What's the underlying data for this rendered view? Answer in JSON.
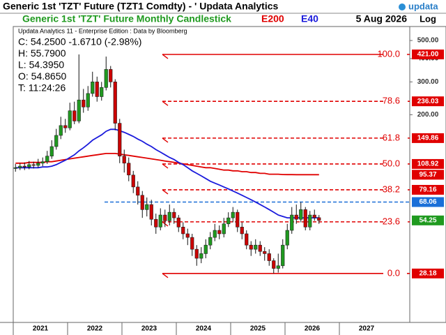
{
  "header": {
    "title": "Generic 1st 'TZT' Future (TZT1 Comdty) - ' Updata Analytics",
    "logo": "updata",
    "scale_mode": "Log"
  },
  "info": {
    "source": "Updata Analytics 11 - Enterprise Edition : Data by Bloomberg",
    "lines": [
      "C: 54.2500 -1.6710 (-2.98%)",
      "H: 55.7900",
      "L: 54.3950",
      "O: 54.8650",
      "T: 11:24:26"
    ]
  },
  "chart_data": {
    "type": "candlestick",
    "title": "Generic 1st 'TZT' Future Monthly Candlestick",
    "date": "5 Aug 2026",
    "log_scale": true,
    "ylim": [
      15.4,
      584
    ],
    "yticks": [
      {
        "value": 500,
        "label": "500.00"
      },
      {
        "value": 400,
        "label": "400.00"
      },
      {
        "value": 300,
        "label": "300.00"
      },
      {
        "value": 200,
        "label": "200.00"
      }
    ],
    "x_labels": [
      "2021",
      "2022",
      "2023",
      "2024",
      "2025",
      "2026",
      "2027"
    ],
    "up_color": "#1f9a1f",
    "down_color": "#cc0000",
    "open": [
      103,
      104,
      106,
      105,
      108,
      107,
      110,
      112,
      120,
      135,
      155,
      175,
      170,
      210,
      185,
      240,
      220,
      260,
      300,
      250,
      280,
      350,
      300,
      180,
      120,
      110,
      95,
      82,
      74,
      62,
      66,
      55,
      50,
      58,
      54,
      60,
      56,
      50,
      46,
      44,
      38,
      34,
      36,
      40,
      44,
      48,
      46,
      52,
      56,
      60,
      50,
      46,
      40,
      38,
      40,
      37,
      36,
      33,
      30,
      31,
      40,
      48,
      58,
      55,
      62,
      50,
      58,
      56.12
    ],
    "high": [
      109,
      110,
      111,
      113,
      112,
      116,
      118,
      128,
      146,
      168,
      195,
      190,
      232,
      235,
      421,
      275,
      285,
      340,
      320,
      300,
      410,
      365,
      310,
      190,
      130,
      118,
      100,
      88,
      78,
      72,
      70,
      59,
      63,
      62,
      66,
      63,
      58,
      53,
      49,
      46,
      40,
      39,
      43,
      47,
      52,
      51,
      56,
      60,
      64,
      62,
      53,
      48,
      42,
      43,
      42,
      39,
      38,
      34,
      36,
      43,
      52,
      64,
      66,
      68,
      64,
      61,
      62,
      58
    ],
    "low": [
      99,
      101,
      101,
      102,
      103,
      104,
      106,
      109,
      116,
      130,
      148,
      160,
      165,
      178,
      180,
      205,
      210,
      250,
      235,
      238,
      270,
      280,
      165,
      110,
      98,
      88,
      76,
      66,
      56,
      57,
      51,
      46,
      48,
      50,
      51,
      52,
      47,
      43,
      40,
      35,
      31,
      32,
      34,
      38,
      42,
      43,
      44,
      50,
      53,
      47,
      43,
      38,
      35,
      36,
      35,
      33,
      31,
      28.18,
      28.5,
      30,
      38,
      46,
      52,
      53,
      48,
      48,
      54,
      52
    ],
    "close": [
      104,
      106,
      105,
      108,
      107,
      110,
      112,
      120,
      135,
      155,
      175,
      170,
      210,
      185,
      240,
      220,
      260,
      300,
      250,
      280,
      350,
      300,
      180,
      120,
      110,
      95,
      82,
      74,
      62,
      66,
      55,
      50,
      58,
      54,
      60,
      56,
      50,
      46,
      44,
      38,
      34,
      36,
      40,
      44,
      48,
      46,
      52,
      56,
      60,
      50,
      46,
      40,
      38,
      40,
      37,
      36,
      33,
      30,
      31,
      40,
      48,
      58,
      55,
      62,
      50,
      58,
      56.12,
      54.25
    ],
    "close_label": "54.25",
    "lines": [
      {
        "name": "E200",
        "color": "#e00000",
        "last_label": "95.37",
        "values": [
          110,
          110,
          110,
          111,
          111,
          111,
          111,
          112,
          112,
          113,
          114,
          115,
          116,
          117,
          118,
          119,
          120,
          121,
          122,
          123,
          124,
          124,
          124,
          123,
          122,
          121,
          120,
          119,
          118,
          117,
          116,
          115,
          114,
          113,
          112,
          111,
          110,
          109,
          108,
          107,
          106,
          105,
          104,
          104,
          103,
          102,
          101,
          101,
          100,
          100,
          99,
          99,
          98,
          98,
          97,
          97,
          96,
          96,
          96,
          95.6,
          95.5,
          95.5,
          95.4,
          95.4,
          95.4,
          95.4,
          95.4,
          95.37
        ]
      },
      {
        "name": "E40",
        "color": "#1a1adc",
        "values": [
          104,
          104,
          104,
          104,
          104,
          104,
          105,
          105,
          106,
          108,
          111,
          114,
          118,
          122,
          128,
          133,
          139,
          146,
          151,
          156,
          163,
          167,
          167,
          164,
          161,
          157,
          153,
          148,
          144,
          139,
          135,
          130,
          126,
          122,
          118,
          115,
          111,
          108,
          104,
          100,
          97,
          94,
          91,
          88,
          86,
          84,
          82,
          80,
          78,
          76,
          74,
          72,
          70,
          68,
          66,
          64,
          62,
          60,
          58,
          57,
          56,
          56,
          56,
          56,
          56,
          56,
          56,
          56
        ]
      }
    ],
    "hline": {
      "value": 68.06,
      "label": "68.06",
      "color": "#1a6fd8"
    },
    "fib": {
      "color": "#e00000",
      "levels": [
        "100.0",
        "78.6",
        "61.8",
        "50.0",
        "38.2",
        "23.6",
        "0.0"
      ],
      "values": [
        421,
        236.03,
        149.86,
        108.92,
        79.16,
        53.3,
        28.18
      ],
      "value_labels": [
        "421.00",
        "236.03",
        "149.86",
        "108.92",
        "79.16",
        null,
        "28.18"
      ]
    }
  }
}
